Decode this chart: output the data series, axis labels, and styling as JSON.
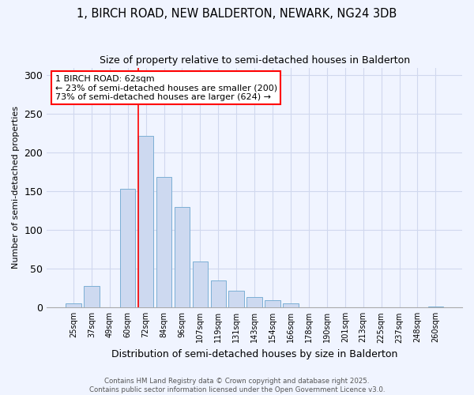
{
  "title": "1, BIRCH ROAD, NEW BALDERTON, NEWARK, NG24 3DB",
  "subtitle": "Size of property relative to semi-detached houses in Balderton",
  "xlabel": "Distribution of semi-detached houses by size in Balderton",
  "ylabel": "Number of semi-detached properties",
  "categories": [
    "25sqm",
    "37sqm",
    "49sqm",
    "60sqm",
    "72sqm",
    "84sqm",
    "96sqm",
    "107sqm",
    "119sqm",
    "131sqm",
    "143sqm",
    "154sqm",
    "166sqm",
    "178sqm",
    "190sqm",
    "201sqm",
    "213sqm",
    "225sqm",
    "237sqm",
    "248sqm",
    "260sqm"
  ],
  "values": [
    5,
    28,
    0,
    153,
    222,
    169,
    130,
    60,
    35,
    22,
    14,
    9,
    5,
    0,
    0,
    0,
    0,
    0,
    0,
    0,
    1
  ],
  "bar_color": "#cdd9f0",
  "bar_edge_color": "#7bafd4",
  "highlight_bar_index": 4,
  "annotation_text": "1 BIRCH ROAD: 62sqm\n← 23% of semi-detached houses are smaller (200)\n73% of semi-detached houses are larger (624) →",
  "annotation_box_color": "white",
  "annotation_box_edge_color": "red",
  "vline_color": "red",
  "ylim": [
    0,
    310
  ],
  "yticks": [
    0,
    50,
    100,
    150,
    200,
    250,
    300
  ],
  "background_color": "#f0f4ff",
  "grid_color": "#d0d8ee",
  "footer_line1": "Contains HM Land Registry data © Crown copyright and database right 2025.",
  "footer_line2": "Contains public sector information licensed under the Open Government Licence v3.0."
}
